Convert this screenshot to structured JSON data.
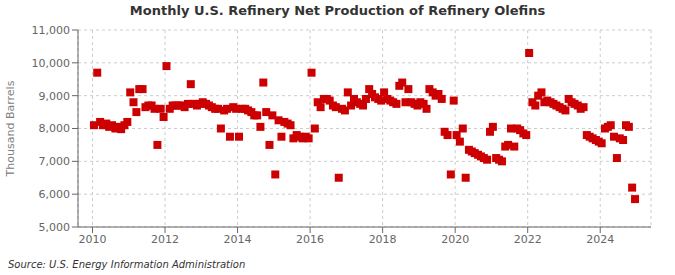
{
  "chart_data": {
    "type": "scatter",
    "title": "Monthly U.S. Refinery Net Production of Refinery Olefins",
    "ylabel": "Thousand Barrels",
    "annotation": "Source: U.S. Energy Information Administration",
    "color": "#cc0000",
    "marker": "square",
    "grid": true,
    "xlim": [
      2009.6,
      2025.4
    ],
    "xticks": [
      2010,
      2012,
      2014,
      2016,
      2018,
      2020,
      2022,
      2024
    ],
    "ylim": [
      5000,
      11000
    ],
    "yticks": [
      {
        "value": 5000,
        "label": "5,000"
      },
      {
        "value": 6000,
        "label": "6,000"
      },
      {
        "value": 7000,
        "label": "7,000"
      },
      {
        "value": 8000,
        "label": "8,000"
      },
      {
        "value": 9000,
        "label": "9,000"
      },
      {
        "value": 10000,
        "label": "10,000"
      },
      {
        "value": 11000,
        "label": "11,000"
      }
    ],
    "x": [
      2010.04,
      2010.13,
      2010.21,
      2010.29,
      2010.38,
      2010.46,
      2010.54,
      2010.63,
      2010.71,
      2010.79,
      2010.88,
      2010.96,
      2011.04,
      2011.13,
      2011.21,
      2011.29,
      2011.38,
      2011.46,
      2011.54,
      2011.63,
      2011.71,
      2011.79,
      2011.88,
      2011.96,
      2012.04,
      2012.13,
      2012.21,
      2012.29,
      2012.38,
      2012.46,
      2012.54,
      2012.63,
      2012.71,
      2012.79,
      2012.88,
      2012.96,
      2013.04,
      2013.13,
      2013.21,
      2013.29,
      2013.38,
      2013.46,
      2013.54,
      2013.63,
      2013.71,
      2013.79,
      2013.88,
      2013.96,
      2014.04,
      2014.13,
      2014.21,
      2014.29,
      2014.38,
      2014.46,
      2014.54,
      2014.63,
      2014.71,
      2014.79,
      2014.88,
      2014.96,
      2015.04,
      2015.13,
      2015.21,
      2015.29,
      2015.38,
      2015.46,
      2015.54,
      2015.63,
      2015.71,
      2015.79,
      2015.88,
      2015.96,
      2016.04,
      2016.13,
      2016.21,
      2016.29,
      2016.38,
      2016.46,
      2016.54,
      2016.63,
      2016.71,
      2016.79,
      2016.88,
      2016.96,
      2017.04,
      2017.13,
      2017.21,
      2017.29,
      2017.38,
      2017.46,
      2017.54,
      2017.63,
      2017.71,
      2017.79,
      2017.88,
      2017.96,
      2018.04,
      2018.13,
      2018.21,
      2018.29,
      2018.38,
      2018.46,
      2018.54,
      2018.63,
      2018.71,
      2018.79,
      2018.88,
      2018.96,
      2019.04,
      2019.13,
      2019.21,
      2019.29,
      2019.38,
      2019.46,
      2019.54,
      2019.63,
      2019.71,
      2019.79,
      2019.88,
      2019.96,
      2020.04,
      2020.13,
      2020.21,
      2020.29,
      2020.38,
      2020.46,
      2020.54,
      2020.63,
      2020.71,
      2020.79,
      2020.88,
      2020.96,
      2021.04,
      2021.13,
      2021.21,
      2021.29,
      2021.38,
      2021.46,
      2021.54,
      2021.63,
      2021.71,
      2021.79,
      2021.88,
      2021.96,
      2022.04,
      2022.13,
      2022.21,
      2022.29,
      2022.38,
      2022.46,
      2022.54,
      2022.63,
      2022.71,
      2022.79,
      2022.88,
      2022.96,
      2023.04,
      2023.13,
      2023.21,
      2023.29,
      2023.38,
      2023.46,
      2023.54,
      2023.63,
      2023.71,
      2023.79,
      2023.88,
      2023.96,
      2024.04,
      2024.13,
      2024.21,
      2024.29,
      2024.38,
      2024.46,
      2024.54,
      2024.63,
      2024.71,
      2024.79,
      2024.88,
      2024.96
    ],
    "values": [
      8100,
      9700,
      8200,
      8100,
      8150,
      8050,
      8100,
      8000,
      8050,
      7980,
      8100,
      8200,
      9100,
      8800,
      8500,
      9200,
      9200,
      8650,
      8700,
      8700,
      8600,
      7500,
      8600,
      8350,
      9900,
      8600,
      8700,
      8700,
      8700,
      8700,
      8650,
      8750,
      9350,
      8750,
      8700,
      8750,
      8800,
      8750,
      8700,
      8650,
      8600,
      8600,
      8000,
      8550,
      8600,
      7750,
      8650,
      8600,
      7750,
      8600,
      8600,
      8550,
      8500,
      8400,
      8400,
      8050,
      9400,
      8500,
      7500,
      8400,
      6600,
      8250,
      7750,
      8200,
      8150,
      8100,
      7700,
      7800,
      7750,
      7700,
      7750,
      7700,
      9700,
      8000,
      8800,
      8650,
      8900,
      8900,
      8850,
      8700,
      8650,
      6500,
      8600,
      8550,
      9100,
      8700,
      8900,
      8800,
      8750,
      8700,
      8900,
      9200,
      9050,
      8950,
      8900,
      8850,
      9100,
      8900,
      8850,
      8800,
      8750,
      9300,
      9400,
      8800,
      9200,
      8800,
      8750,
      8700,
      8800,
      8750,
      8600,
      9200,
      9100,
      9000,
      9050,
      8900,
      7900,
      7800,
      6600,
      8850,
      7800,
      7600,
      8000,
      6500,
      7350,
      7300,
      7250,
      7200,
      7150,
      7100,
      7050,
      7900,
      8050,
      7100,
      7050,
      7000,
      7450,
      7500,
      8000,
      7450,
      8000,
      7950,
      7850,
      7800,
      10300,
      8800,
      8700,
      9000,
      9100,
      8800,
      8850,
      8800,
      8750,
      8700,
      8650,
      8600,
      8550,
      8900,
      8800,
      8750,
      8700,
      8600,
      8650,
      7800,
      7750,
      7700,
      7650,
      7600,
      7550,
      8000,
      8050,
      8100,
      7750,
      7100,
      7700,
      7650,
      8100,
      8050,
      6200,
      5850
    ]
  }
}
